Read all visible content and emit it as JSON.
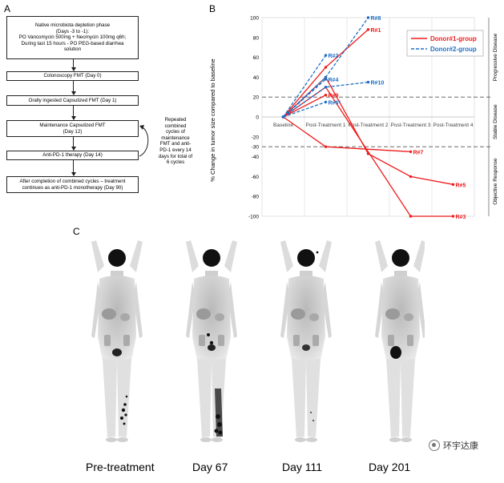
{
  "panel_a": {
    "letter": "A",
    "boxes": [
      "Native microbiota depletion phase\n(Days -3 to -1):\nPO Vancomycin 500mg + Neomycin 100mg q6h;\nDuring last 15 hours - PO PEG-based diarrhea\nsolution",
      "Colonoscopy FMT (Day 0)",
      "Orally ingested Capsulized FMT (Day 1)",
      "Maintenance Capsulized FMT\n(Day 12)",
      "Anti-PD-1 therapy (Day 14)",
      "After completion of combined cycles – treatment\ncontinues as anti-PD-1 monotherapy (Day 90)"
    ],
    "side_note": "Repeated\ncombined\ncycles of\nmaintenance\nFMT and anti-\nPD-1 every 14\ndays for total of\n6 cycles"
  },
  "panel_b": {
    "letter": "B",
    "chart_data": {
      "type": "line",
      "ylabel": "% Change in tumor size compared to baseline",
      "categories": [
        "Baseline",
        "Post-Treatment 1",
        "Post-Treatment 2",
        "Post-Treatment 3",
        "Post-Treatment 4"
      ],
      "ylim": [
        -100,
        100
      ],
      "yticks": [
        -100,
        -80,
        -60,
        -40,
        -30,
        -20,
        0,
        20,
        40,
        60,
        80,
        100
      ],
      "reference_lines": [
        20,
        -30
      ],
      "legend": {
        "placement": "top-right",
        "entries": [
          "Donor#1-group",
          "Donor#2-group"
        ]
      },
      "zones": [
        "Progressive Disease",
        "Stable Disease",
        "Objective Response"
      ],
      "colors": {
        "donor1": "#ee1c1c",
        "donor2": "#1f6fc4"
      },
      "series": [
        {
          "label": "R#1",
          "group": "donor1",
          "x": [
            0,
            1,
            2
          ],
          "y": [
            0,
            50,
            88
          ]
        },
        {
          "label": "R#3",
          "group": "donor1",
          "x": [
            0,
            1,
            3,
            4
          ],
          "y": [
            0,
            30,
            -100,
            -100
          ]
        },
        {
          "label": "R#5",
          "group": "donor1",
          "x": [
            0,
            1,
            2,
            3,
            4
          ],
          "y": [
            0,
            40,
            -37,
            -60,
            -68
          ]
        },
        {
          "label": "R#7",
          "group": "donor1",
          "x": [
            0,
            1,
            3
          ],
          "y": [
            0,
            -30,
            -35
          ]
        },
        {
          "label": "R#9",
          "group": "donor1",
          "x": [
            0,
            1
          ],
          "y": [
            0,
            22
          ]
        },
        {
          "label": "R#2",
          "group": "donor2",
          "x": [
            0,
            1
          ],
          "y": [
            0,
            62
          ]
        },
        {
          "label": "R#4",
          "group": "donor2",
          "x": [
            0,
            1
          ],
          "y": [
            0,
            38
          ]
        },
        {
          "label": "R#6*",
          "group": "donor2",
          "x": [
            0,
            1
          ],
          "y": [
            0,
            15
          ]
        },
        {
          "label": "R#8",
          "group": "donor2",
          "x": [
            0,
            1,
            2
          ],
          "y": [
            0,
            40,
            100
          ]
        },
        {
          "label": "R#10",
          "group": "donor2",
          "x": [
            0,
            1,
            2
          ],
          "y": [
            0,
            30,
            35
          ]
        }
      ]
    }
  },
  "panel_c": {
    "letter": "C",
    "captions": [
      "Pre-treatment",
      "Day 67",
      "Day 111",
      "Day 201"
    ]
  },
  "watermark": "环宇达康"
}
